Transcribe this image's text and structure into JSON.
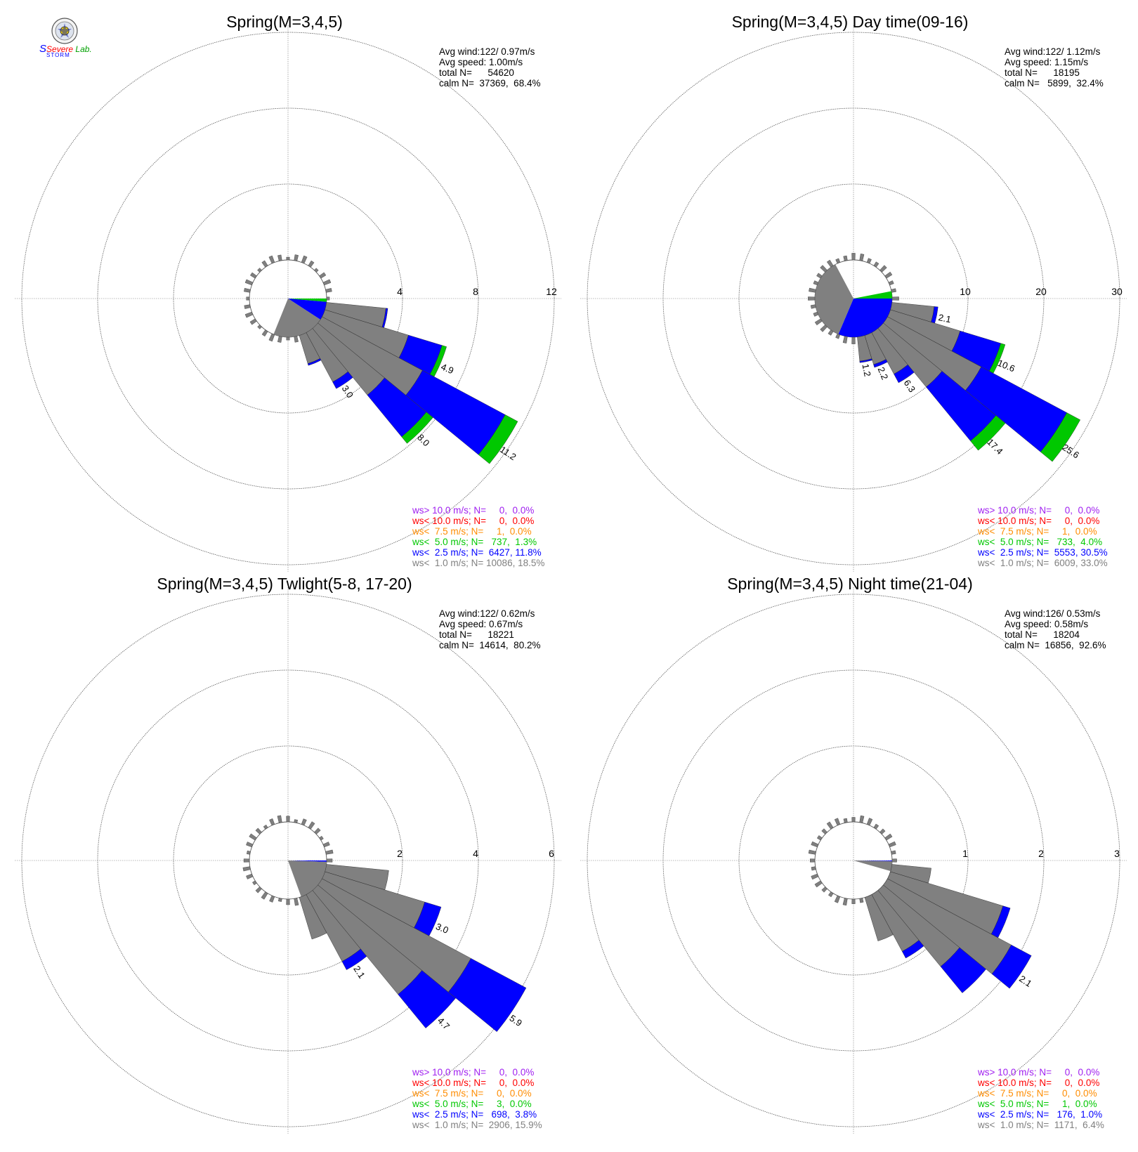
{
  "logo": {
    "text_top": "Severe",
    "text_bottom": "Storm",
    "text_lab": "Lab."
  },
  "legend_colors": {
    "gt10": "#a020f0",
    "lt10": "#ff0000",
    "lt7_5": "#ff8c00",
    "lt5": "#00c800",
    "lt2_5": "#0000ff",
    "lt1": "#808080"
  },
  "chart_data": [
    {
      "type": "wind-rose",
      "title": "Spring(M=3,4,5)",
      "stats": {
        "avg_wind": "Avg wind:122/ 0.97m/s",
        "avg_speed": "Avg speed: 1.00m/s",
        "total": "total N=      54620",
        "calm": "calm N=  37369,  68.4%"
      },
      "rings": [
        4,
        8,
        12
      ],
      "ring_labels": [
        "4",
        "8",
        "12"
      ],
      "calm_fraction": 0.684,
      "bars": [
        {
          "dir": 101.25,
          "lt1": 3.15,
          "lt2_5": 0.1,
          "lt5": 0
        },
        {
          "dir": 112.5,
          "lt1": 4.6,
          "lt2_5": 1.85,
          "lt5": 0.25,
          "label": "4.9"
        },
        {
          "dir": 123.75,
          "lt1": 6.0,
          "lt2_5": 4.95,
          "lt5": 0.75,
          "label": "11.2"
        },
        {
          "dir": 135.0,
          "lt1": 4.55,
          "lt2_5": 2.85,
          "lt5": 0.45,
          "label": "8.0"
        },
        {
          "dir": 146.25,
          "lt1": 2.95,
          "lt2_5": 0.4,
          "lt5": 0,
          "label": "3.0"
        },
        {
          "dir": 157.5,
          "lt1": 1.55,
          "lt2_5": 0.1,
          "lt5": 0
        }
      ],
      "wedges": [
        {
          "from": 90,
          "to": 95,
          "color": "lt5"
        },
        {
          "from": 95,
          "to": 123,
          "color": "lt2_5"
        },
        {
          "from": 123,
          "to": 202,
          "color": "lt1"
        }
      ],
      "legend": [
        {
          "key": "gt10",
          "text": "ws> 10.0 m/s; N=     0,  0.0%"
        },
        {
          "key": "lt10",
          "text": "ws< 10.0 m/s; N=     0,  0.0%"
        },
        {
          "key": "lt7_5",
          "text": "ws<  7.5 m/s; N=     1,  0.0%"
        },
        {
          "key": "lt5",
          "text": "ws<  5.0 m/s; N=   737,  1.3%"
        },
        {
          "key": "lt2_5",
          "text": "ws<  2.5 m/s; N=  6427, 11.8%"
        },
        {
          "key": "lt1",
          "text": "ws<  1.0 m/s; N= 10086, 18.5%"
        }
      ]
    },
    {
      "type": "wind-rose",
      "title": "Spring(M=3,4,5) Day time(09-16)",
      "stats": {
        "avg_wind": "Avg wind:122/ 1.12m/s",
        "avg_speed": "Avg speed: 1.15m/s",
        "total": "total N=      18195",
        "calm": "calm N=   5899,  32.4%"
      },
      "rings": [
        10,
        20,
        30
      ],
      "ring_labels": [
        "10",
        "20",
        "30"
      ],
      "calm_fraction": 0.324,
      "bars": [
        {
          "dir": 101.25,
          "lt1": 5.6,
          "lt2_5": 0.5,
          "lt5": 0,
          "label": "2.1"
        },
        {
          "dir": 112.5,
          "lt1": 9.6,
          "lt2_5": 5.6,
          "lt5": 0.6,
          "label": "10.6"
        },
        {
          "dir": 123.75,
          "lt1": 14.0,
          "lt2_5": 12.8,
          "lt5": 2.0,
          "label": "25.6"
        },
        {
          "dir": 135.0,
          "lt1": 10.0,
          "lt2_5": 9.2,
          "lt5": 1.6,
          "label": "17.4"
        },
        {
          "dir": 146.25,
          "lt1": 6.2,
          "lt2_5": 1.3,
          "lt5": 0,
          "label": "6.3"
        },
        {
          "dir": 157.5,
          "lt1": 4.0,
          "lt2_5": 0.4,
          "lt5": 0,
          "label": "2.2"
        },
        {
          "dir": 168.75,
          "lt1": 3.2,
          "lt2_5": 0.2,
          "lt5": 0,
          "label": "1.2"
        }
      ],
      "wedges": [
        {
          "from": 79,
          "to": 90,
          "color": "lt5"
        },
        {
          "from": 90,
          "to": 203,
          "color": "lt2_5"
        },
        {
          "from": 203,
          "to": 332,
          "color": "lt1"
        }
      ],
      "legend": [
        {
          "key": "gt10",
          "text": "ws> 10.0 m/s; N=     0,  0.0%"
        },
        {
          "key": "lt10",
          "text": "ws< 10.0 m/s; N=     0,  0.0%"
        },
        {
          "key": "lt7_5",
          "text": "ws<  7.5 m/s; N=     1,  0.0%"
        },
        {
          "key": "lt5",
          "text": "ws<  5.0 m/s; N=   733,  4.0%"
        },
        {
          "key": "lt2_5",
          "text": "ws<  2.5 m/s; N=  5553, 30.5%"
        },
        {
          "key": "lt1",
          "text": "ws<  1.0 m/s; N=  6009, 33.0%"
        }
      ]
    },
    {
      "type": "wind-rose",
      "title": "Spring(M=3,4,5) Twlight(5-8, 17-20)",
      "stats": {
        "avg_wind": "Avg wind:122/ 0.62m/s",
        "avg_speed": "Avg speed: 0.67m/s",
        "total": "total N=      18221",
        "calm": "calm N=  14614,  80.2%"
      },
      "rings": [
        2,
        4,
        6
      ],
      "ring_labels": [
        "2",
        "4",
        "6"
      ],
      "calm_fraction": 0.802,
      "bars": [
        {
          "dir": 101.25,
          "lt1": 1.65,
          "lt2_5": 0,
          "lt5": 0
        },
        {
          "dir": 112.5,
          "lt1": 2.75,
          "lt2_5": 0.45,
          "lt5": 0,
          "label": "3.0"
        },
        {
          "dir": 123.75,
          "lt1": 4.45,
          "lt2_5": 1.65,
          "lt5": 0,
          "label": "5.9"
        },
        {
          "dir": 135.0,
          "lt1": 3.55,
          "lt2_5": 1.15,
          "lt5": 0,
          "label": "4.7"
        },
        {
          "dir": 146.25,
          "lt1": 2.0,
          "lt2_5": 0.25,
          "lt5": 0,
          "label": "2.1"
        },
        {
          "dir": 157.5,
          "lt1": 1.15,
          "lt2_5": 0,
          "lt5": 0
        }
      ],
      "wedges": [
        {
          "from": 90,
          "to": 92,
          "color": "lt2_5"
        },
        {
          "from": 92,
          "to": 160,
          "color": "lt1"
        }
      ],
      "legend": [
        {
          "key": "gt10",
          "text": "ws> 10.0 m/s; N=     0,  0.0%"
        },
        {
          "key": "lt10",
          "text": "ws< 10.0 m/s; N=     0,  0.0%"
        },
        {
          "key": "lt7_5",
          "text": "ws<  7.5 m/s; N=     0,  0.0%"
        },
        {
          "key": "lt5",
          "text": "ws<  5.0 m/s; N=     3,  0.0%"
        },
        {
          "key": "lt2_5",
          "text": "ws<  2.5 m/s; N=   698,  3.8%"
        },
        {
          "key": "lt1",
          "text": "ws<  1.0 m/s; N=  2906, 15.9%"
        }
      ]
    },
    {
      "type": "wind-rose",
      "title": "Spring(M=3,4,5) Night time(21-04)",
      "stats": {
        "avg_wind": "Avg wind:126/ 0.53m/s",
        "avg_speed": "Avg speed: 0.58m/s",
        "total": "total N=      18204",
        "calm": "calm N=  16856,  92.6%"
      },
      "rings": [
        1,
        2,
        3
      ],
      "ring_labels": [
        "1",
        "2",
        "3"
      ],
      "calm_fraction": 0.926,
      "bars": [
        {
          "dir": 101.25,
          "lt1": 0.52,
          "lt2_5": 0,
          "lt5": 0
        },
        {
          "dir": 112.5,
          "lt1": 1.55,
          "lt2_5": 0.1,
          "lt5": 0
        },
        {
          "dir": 123.75,
          "lt1": 1.85,
          "lt2_5": 0.3,
          "lt5": 0,
          "label": "2.1"
        },
        {
          "dir": 135.0,
          "lt1": 1.3,
          "lt2_5": 0.45,
          "lt5": 0
        },
        {
          "dir": 146.25,
          "lt1": 0.85,
          "lt2_5": 0.1,
          "lt5": 0
        },
        {
          "dir": 157.5,
          "lt1": 0.6,
          "lt2_5": 0,
          "lt5": 0
        }
      ],
      "wedges": [
        {
          "from": 90,
          "to": 91,
          "color": "lt2_5"
        },
        {
          "from": 91,
          "to": 106,
          "color": "lt1"
        }
      ],
      "legend": [
        {
          "key": "gt10",
          "text": "ws> 10.0 m/s; N=     0,  0.0%"
        },
        {
          "key": "lt10",
          "text": "ws< 10.0 m/s; N=     0,  0.0%"
        },
        {
          "key": "lt7_5",
          "text": "ws<  7.5 m/s; N=     0,  0.0%"
        },
        {
          "key": "lt5",
          "text": "ws<  5.0 m/s; N=     1,  0.0%"
        },
        {
          "key": "lt2_5",
          "text": "ws<  2.5 m/s; N=   176,  1.0%"
        },
        {
          "key": "lt1",
          "text": "ws<  1.0 m/s; N=  1171,  6.4%"
        }
      ]
    }
  ]
}
